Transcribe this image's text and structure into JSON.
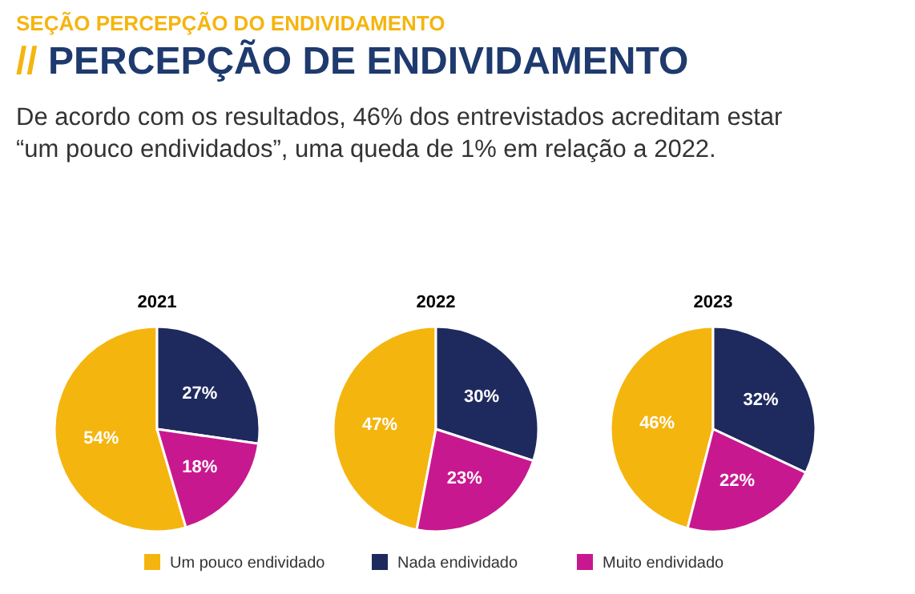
{
  "chart_data": [
    {
      "type": "other",
      "subtitle": "SEÇÃO PERCEPÇÃO DO ENDIVIDAMENTO",
      "title": "// PERCEPÇÃO DE ENDIVIDAMENTO",
      "annotations": [
        "De acordo com os resultados, 46% dos entrevistados acreditam estar “um pouco endividados”, uma queda de 1% em relação a 2022."
      ]
    },
    {
      "type": "pie",
      "title": "2021",
      "categories": [
        "Um pouco endividado",
        "Nada endividado",
        "Muito endividado"
      ],
      "values": [
        54,
        27,
        18
      ],
      "value_labels": [
        "54%",
        "27%",
        "18%"
      ],
      "colors": [
        "#f5b50f",
        "#1e2a5e",
        "#c8188f"
      ],
      "legend": "bottom"
    },
    {
      "type": "pie",
      "title": "2022",
      "categories": [
        null,
        null,
        null
      ],
      "values": [
        47,
        30,
        23
      ],
      "value_labels": [
        "47%",
        "30%",
        "23%"
      ],
      "colors": [
        "#f5b50f",
        "#1e2a5e",
        "#c8188f"
      ]
    },
    {
      "type": "pie",
      "title": "2023",
      "categories": [
        null,
        null,
        null
      ],
      "values": [
        46,
        32,
        22
      ],
      "value_labels": [
        "46%",
        "32%",
        "22%"
      ],
      "colors": [
        "#f5b50f",
        "#1e2a5e",
        "#c8188f"
      ]
    }
  ]
}
